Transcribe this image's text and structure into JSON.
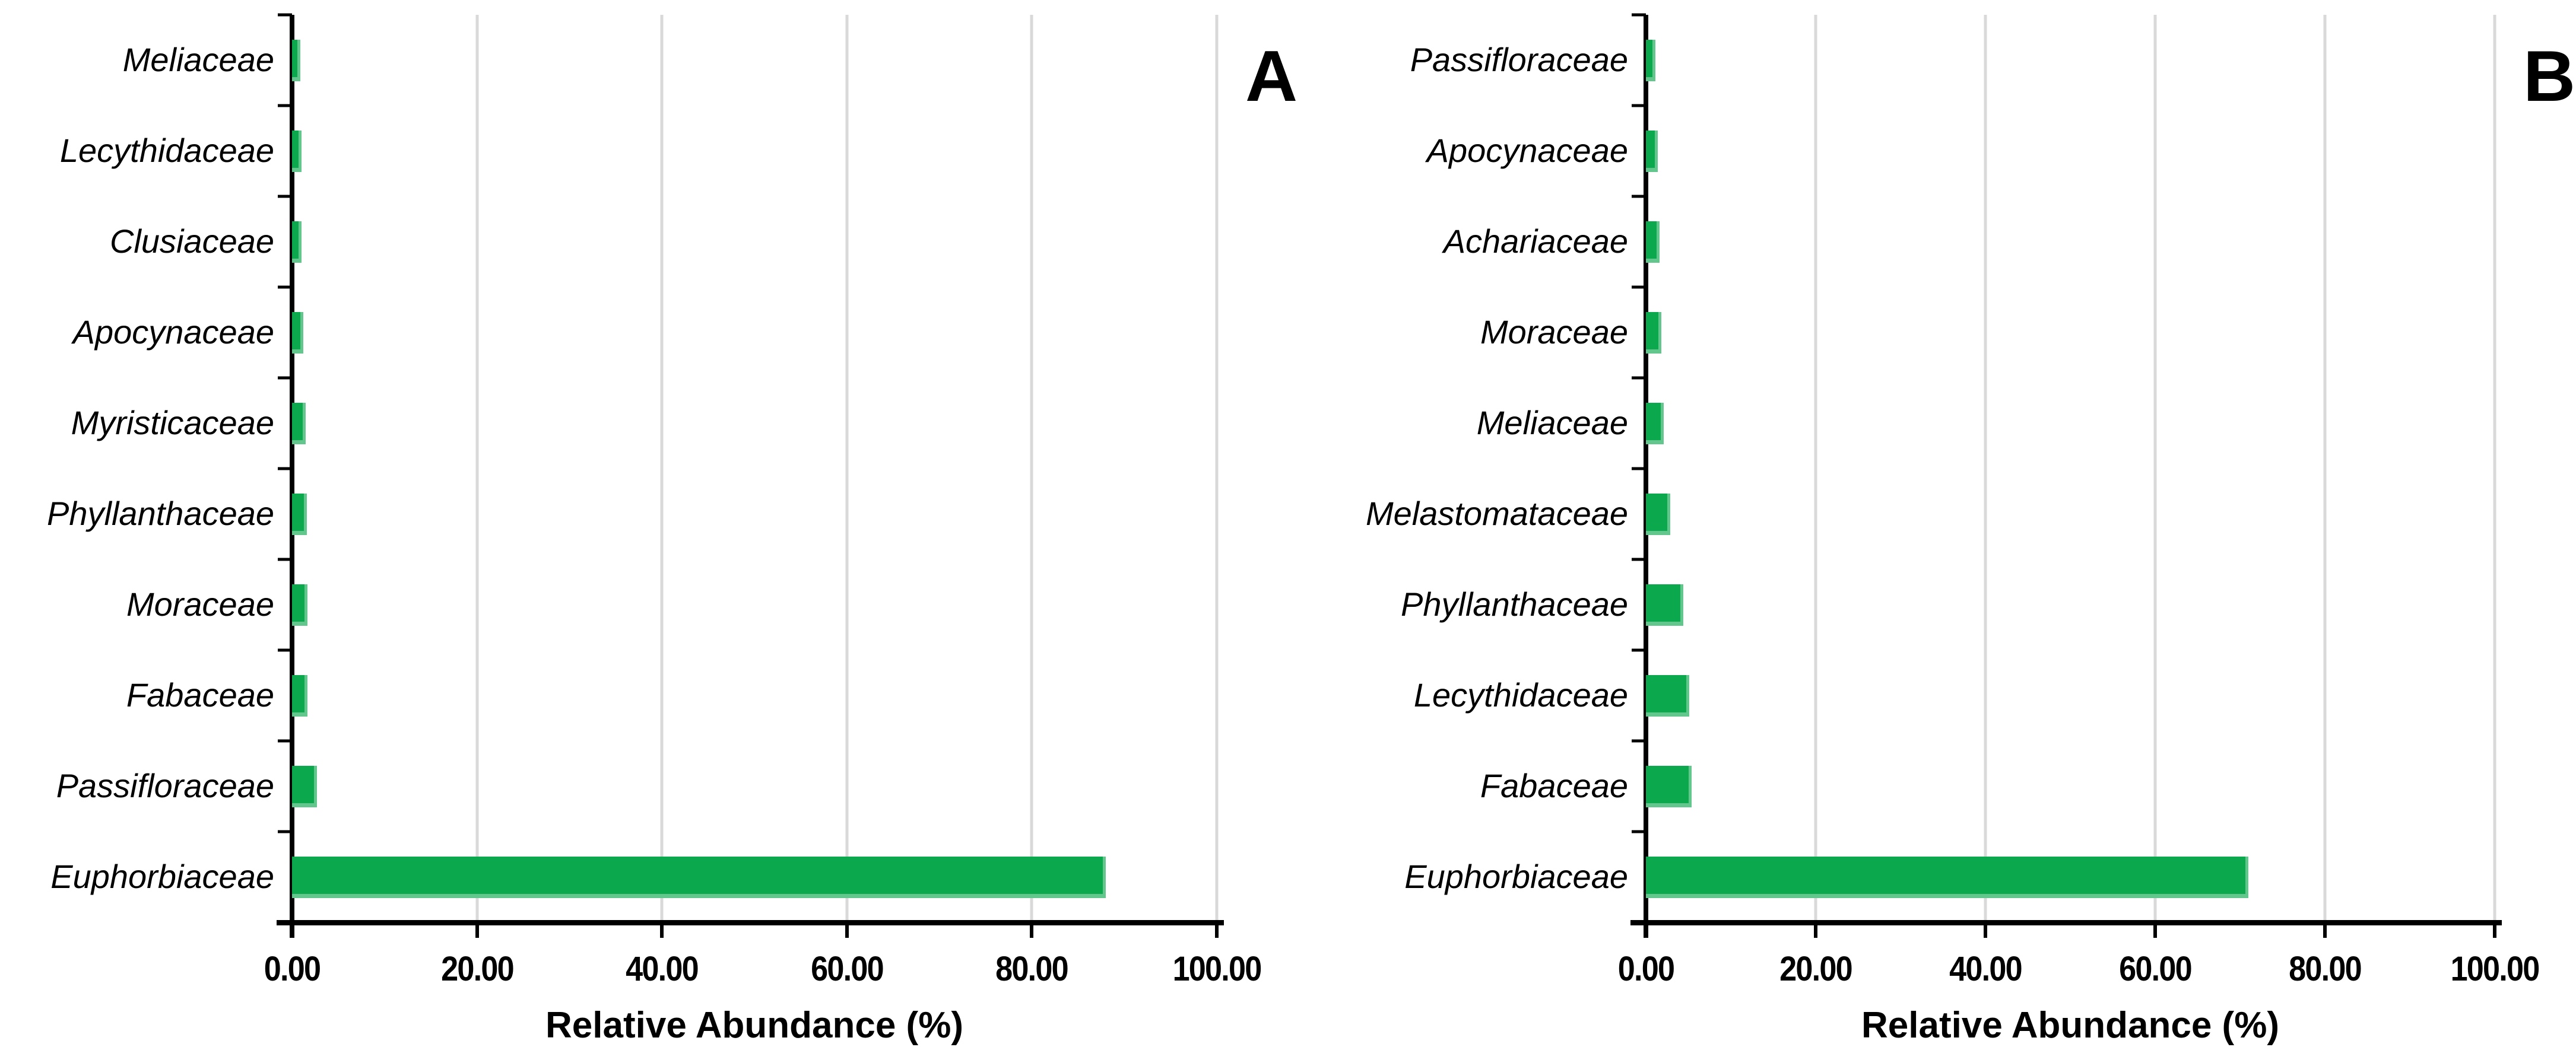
{
  "figure": {
    "background": "#ffffff"
  },
  "colors": {
    "bar_fill": "#0ca84d",
    "bar_bevel": "#63c68c",
    "gridline": "#d9d9d9",
    "axis": "#000000",
    "text": "#000000"
  },
  "chart_data": [
    {
      "type": "bar",
      "orientation": "horizontal",
      "panel_label": "A",
      "xlabel": "Relative Abundance (%)",
      "xlim": [
        0,
        100
      ],
      "x_ticks": [
        "0.00",
        "20.00",
        "40.00",
        "60.00",
        "80.00",
        "100.00"
      ],
      "grid": "vertical-gridlines-at-ticks",
      "legend": "none",
      "categories": [
        "Meliaceae",
        "Lecythidaceae",
        "Clusiaceae",
        "Apocynaceae",
        "Myristicaceae",
        "Phyllanthaceae",
        "Moraceae",
        "Fabaceae",
        "Passifloraceae",
        "Euphorbiaceae"
      ],
      "values": [
        0.9,
        1.0,
        1.0,
        1.2,
        1.5,
        1.6,
        1.7,
        1.7,
        2.7,
        88.0
      ]
    },
    {
      "type": "bar",
      "orientation": "horizontal",
      "panel_label": "B",
      "xlabel": "Relative Abundance (%)",
      "xlim": [
        0,
        100
      ],
      "x_ticks": [
        "0.00",
        "20.00",
        "40.00",
        "60.00",
        "80.00",
        "100.00"
      ],
      "grid": "vertical-gridlines-at-ticks",
      "legend": "none",
      "categories": [
        "Passifloraceae",
        "Apocynaceae",
        "Achariaceae",
        "Moraceae",
        "Meliaceae",
        "Melastomataceae",
        "Phyllanthaceae",
        "Lecythidaceae",
        "Fabaceae",
        "Euphorbiaceae"
      ],
      "values": [
        1.1,
        1.4,
        1.6,
        1.8,
        2.1,
        2.9,
        4.4,
        5.1,
        5.4,
        71.0
      ]
    }
  ]
}
